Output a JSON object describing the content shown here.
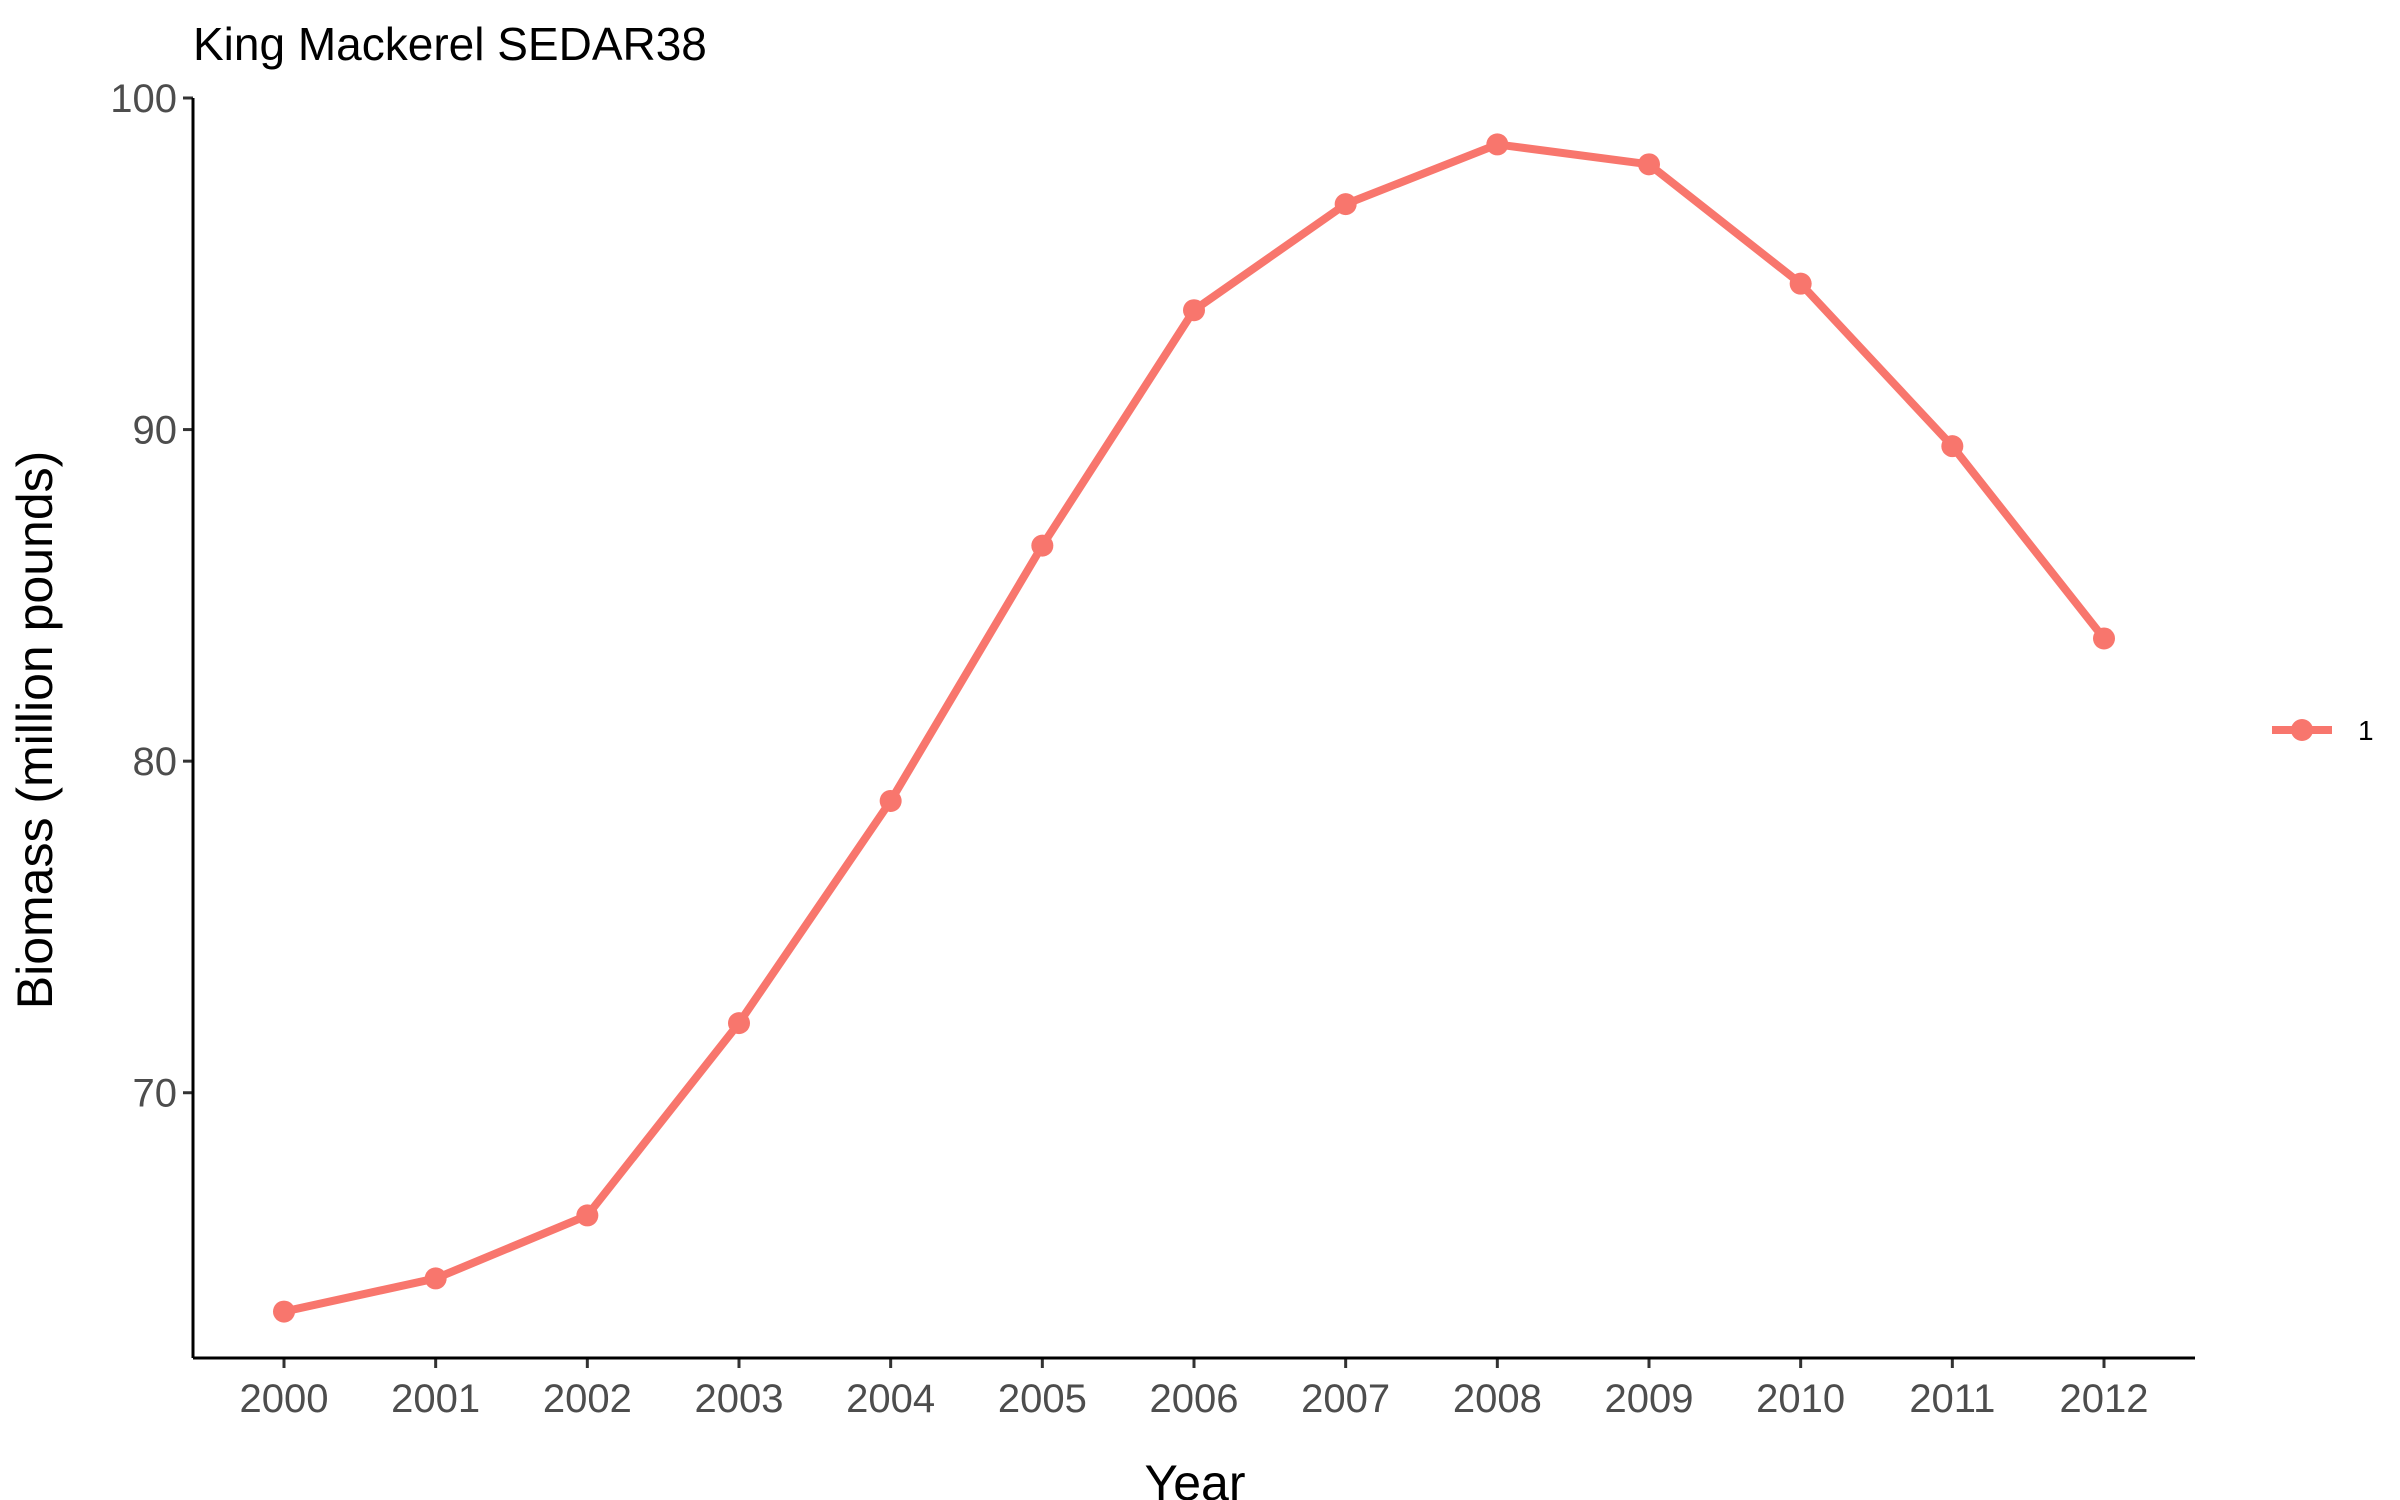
{
  "chart_data": {
    "type": "line",
    "title": "King Mackerel SEDAR38",
    "xlabel": "Year",
    "ylabel": "Biomass (million pounds)",
    "x": [
      2000,
      2001,
      2002,
      2003,
      2004,
      2005,
      2006,
      2007,
      2008,
      2009,
      2010,
      2011,
      2012
    ],
    "x_tick_labels": [
      "2000",
      "2001",
      "2002",
      "2003",
      "2004",
      "2005",
      "2006",
      "2007",
      "2008",
      "2009",
      "2010",
      "2011",
      "2012"
    ],
    "series": [
      {
        "name": "1",
        "color": "#f8766d",
        "values": [
          63.4,
          64.4,
          66.3,
          72.1,
          78.8,
          86.5,
          93.6,
          96.8,
          98.6,
          98.0,
          94.4,
          89.5,
          83.7
        ]
      }
    ],
    "yticks": [
      70,
      80,
      90,
      100
    ],
    "y_tick_labels": [
      "70",
      "80",
      "90",
      "100"
    ],
    "ylim": [
      62,
      100
    ],
    "xlim": [
      1999.4,
      2012.6
    ],
    "grid": false,
    "legend_position": "right"
  }
}
